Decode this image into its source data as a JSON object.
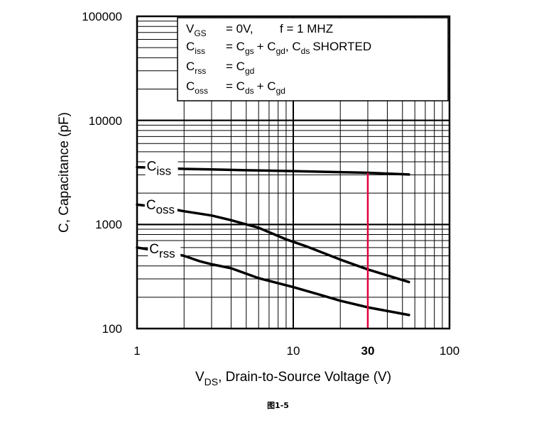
{
  "chart_data": {
    "type": "line",
    "scale": "log-log",
    "xlabel_prefix": "V",
    "xlabel_sub": "DS",
    "xlabel_rest": ", Drain-to-Source Voltage (V)",
    "ylabel": "C, Capacitance (pF)",
    "xlim": [
      1,
      100
    ],
    "ylim": [
      100,
      100000
    ],
    "x_ticks": [
      "1",
      "10",
      "100"
    ],
    "y_ticks": [
      "100",
      "1000",
      "10000",
      "100000"
    ],
    "highlight": {
      "x": 30,
      "label": "30",
      "color": "#e0003c"
    },
    "legend": {
      "line1": {
        "a": "V",
        "a_sub": "GS",
        "b": "= 0V,",
        "c": "f = 1 MHZ"
      },
      "line2": {
        "a": "C",
        "a_sub": "iss",
        "b": "= C",
        "b_sub": "gs",
        "c": "+ C",
        "c_sub": "gd",
        "d": ",  C",
        "d_sub": "ds",
        "e": "SHORTED"
      },
      "line3": {
        "a": "C",
        "a_sub": "rss",
        "b": "= C",
        "b_sub": "gd"
      },
      "line4": {
        "a": "C",
        "a_sub": "oss",
        "b": "= C",
        "b_sub": "ds",
        "c": "+ C",
        "c_sub": "gd"
      }
    },
    "series": [
      {
        "name": "Ciss",
        "label_main": "C",
        "label_sub": "iss",
        "points": [
          [
            1,
            3550
          ],
          [
            1.4,
            3500
          ],
          [
            2,
            3420
          ],
          [
            3,
            3380
          ],
          [
            5,
            3320
          ],
          [
            10,
            3260
          ],
          [
            20,
            3180
          ],
          [
            30,
            3140
          ],
          [
            55,
            3020
          ]
        ]
      },
      {
        "name": "Coss",
        "label_main": "C",
        "label_sub": "oss",
        "points": [
          [
            1,
            1550
          ],
          [
            1.5,
            1450
          ],
          [
            2,
            1340
          ],
          [
            3,
            1220
          ],
          [
            4,
            1100
          ],
          [
            6,
            930
          ],
          [
            9,
            720
          ],
          [
            12,
            620
          ],
          [
            20,
            460
          ],
          [
            30,
            370
          ],
          [
            55,
            280
          ]
        ]
      },
      {
        "name": "Crss",
        "label_main": "C",
        "label_sub": "rss",
        "points": [
          [
            1,
            600
          ],
          [
            1.5,
            545
          ],
          [
            2,
            500
          ],
          [
            2.5,
            445
          ],
          [
            3,
            415
          ],
          [
            4,
            380
          ],
          [
            6,
            305
          ],
          [
            10,
            250
          ],
          [
            15,
            210
          ],
          [
            20,
            185
          ],
          [
            30,
            160
          ],
          [
            55,
            135
          ]
        ]
      }
    ]
  },
  "caption": "图1-5"
}
